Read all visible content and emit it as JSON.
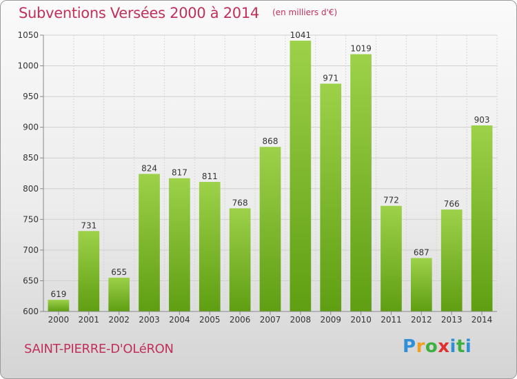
{
  "chart_data": {
    "type": "bar",
    "title": "Subventions Versées 2000 à 2014",
    "unit_note": "(en milliers d'€)",
    "categories": [
      "2000",
      "2001",
      "2002",
      "2003",
      "2004",
      "2005",
      "2006",
      "2007",
      "2008",
      "2009",
      "2010",
      "2011",
      "2012",
      "2013",
      "2014"
    ],
    "values": [
      619,
      731,
      655,
      824,
      817,
      811,
      768,
      868,
      1041,
      971,
      1019,
      772,
      687,
      766,
      903
    ],
    "ylim": [
      600,
      1050
    ],
    "yticks": [
      600,
      650,
      700,
      750,
      800,
      850,
      900,
      950,
      1000,
      1050
    ],
    "grid": true,
    "xlabel": "",
    "ylabel": "",
    "bar_color_top": "#9dd14a",
    "bar_color_bottom": "#5f9e12"
  },
  "location": "SAINT-PIERRE-D'OLéRON",
  "brand": {
    "letters": [
      "P",
      "r",
      "o",
      "x",
      "i",
      "t",
      "i"
    ],
    "colors": [
      "#2f8fd8",
      "#f0a020",
      "#3fb040",
      "#e03030",
      "#2f8fd8",
      "#3fb040",
      "#2f8fd8"
    ]
  }
}
